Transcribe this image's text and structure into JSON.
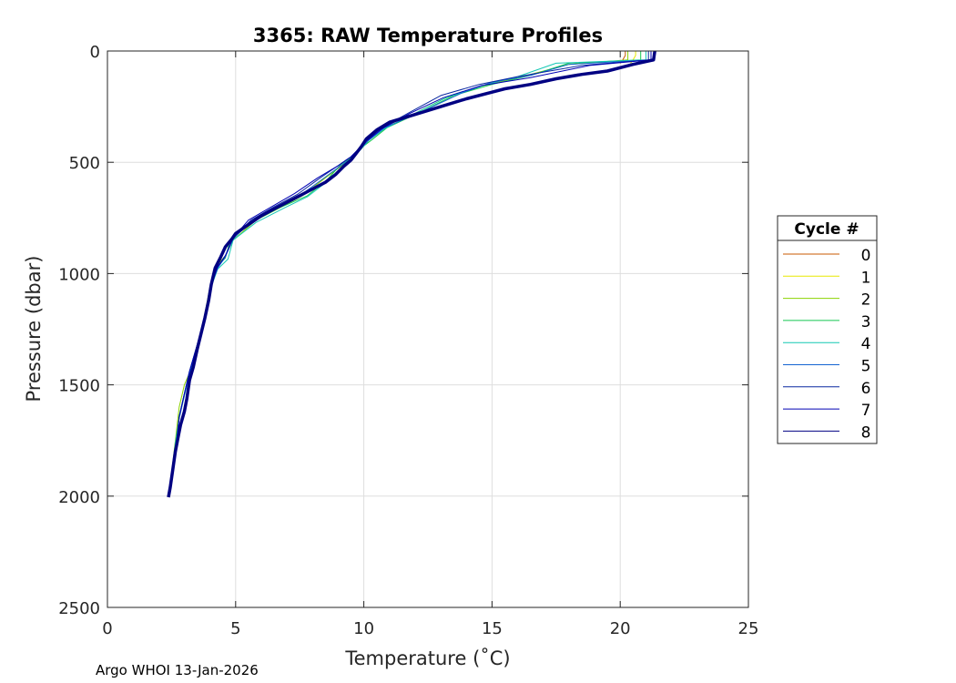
{
  "chart_data": {
    "type": "line",
    "title": "3365: RAW Temperature Profiles",
    "xlabel": "Temperature (˚C)",
    "ylabel": "Pressure (dbar)",
    "xlim": [
      0,
      25
    ],
    "ylim": [
      0,
      2500
    ],
    "y_reversed": true,
    "grid": true,
    "x_ticks": [
      0,
      5,
      10,
      15,
      20,
      25
    ],
    "y_ticks": [
      0,
      500,
      1000,
      1500,
      2000,
      2500
    ],
    "legend": {
      "title": "Cycle #",
      "placement": "outside-right"
    },
    "series": [
      {
        "name": "0",
        "color": "#c85a00",
        "x": [
          20.2,
          20.2,
          20.1,
          20.0
        ],
        "y": [
          0,
          20,
          40,
          55
        ]
      },
      {
        "name": "1",
        "color": "#e8e800",
        "x": [
          20.6,
          20.6,
          20.5,
          20.4
        ],
        "y": [
          0,
          20,
          40,
          55
        ]
      },
      {
        "name": "2",
        "color": "#8cd200",
        "x": [
          20.3,
          20.3,
          18.0,
          16.0,
          14.5,
          13.2,
          12.0,
          10.6,
          10.2,
          9.9,
          9.6,
          9.2,
          8.5,
          7.6,
          6.8,
          5.8,
          4.9,
          4.6,
          4.3,
          4.0,
          3.8,
          3.6,
          3.3,
          3.0,
          2.8,
          2.7,
          2.6,
          2.5
        ],
        "y": [
          0,
          40,
          60,
          120,
          160,
          210,
          280,
          350,
          400,
          440,
          470,
          510,
          570,
          650,
          700,
          760,
          850,
          920,
          960,
          1060,
          1180,
          1300,
          1420,
          1500,
          1600,
          1700,
          1800,
          1900
        ]
      },
      {
        "name": "3",
        "color": "#14c850",
        "x": [
          20.8,
          20.8,
          18.0,
          16.5,
          15.0,
          13.5,
          12.2,
          10.9,
          10.3,
          9.9,
          9.6,
          9.1,
          8.6,
          7.8,
          6.7,
          5.7,
          4.8,
          4.6,
          4.2,
          4.0,
          3.8,
          3.5,
          3.2,
          3.0,
          2.8,
          2.7,
          2.6,
          2.45
        ],
        "y": [
          0,
          40,
          55,
          110,
          150,
          200,
          275,
          345,
          400,
          435,
          470,
          510,
          575,
          650,
          705,
          765,
          845,
          930,
          980,
          1070,
          1200,
          1320,
          1440,
          1540,
          1640,
          1740,
          1860,
          1960
        ]
      },
      {
        "name": "4",
        "color": "#14c8b4",
        "x": [
          21.0,
          21.0,
          17.5,
          16.0,
          14.8,
          13.3,
          12.0,
          10.8,
          10.2,
          9.9,
          9.6,
          9.2,
          8.7,
          7.8,
          6.9,
          5.8,
          4.9,
          4.7,
          4.3,
          4.0,
          3.8,
          3.5,
          3.2,
          3.0,
          2.8,
          2.65,
          2.55,
          2.45
        ],
        "y": [
          0,
          40,
          55,
          115,
          150,
          205,
          280,
          350,
          400,
          440,
          475,
          515,
          575,
          655,
          705,
          770,
          850,
          935,
          980,
          1075,
          1200,
          1330,
          1450,
          1550,
          1650,
          1760,
          1860,
          1970
        ]
      },
      {
        "name": "5",
        "color": "#1464d2",
        "x": [
          21.2,
          21.2,
          18.0,
          16.5,
          15.0,
          13.8,
          12.3,
          10.8,
          10.2,
          9.85,
          9.6,
          9.1,
          8.4,
          7.5,
          6.6,
          5.6,
          4.9,
          4.6,
          4.3,
          4.0,
          3.8,
          3.5,
          3.2,
          3.0,
          2.8,
          2.7,
          2.55,
          2.45
        ],
        "y": [
          0,
          40,
          60,
          110,
          140,
          190,
          270,
          345,
          400,
          440,
          475,
          515,
          575,
          650,
          705,
          765,
          845,
          925,
          975,
          1070,
          1195,
          1325,
          1445,
          1545,
          1650,
          1760,
          1860,
          1970
        ]
      },
      {
        "name": "6",
        "color": "#0a28a0",
        "x": [
          21.1,
          21.1,
          18.5,
          16.0,
          14.5,
          13.0,
          11.8,
          10.7,
          10.1,
          9.8,
          9.5,
          9.0,
          8.3,
          7.4,
          6.5,
          5.6,
          4.9,
          4.6,
          4.3,
          4.0,
          3.8,
          3.5,
          3.2,
          3.0,
          2.8,
          2.7,
          2.55,
          2.45
        ],
        "y": [
          0,
          40,
          65,
          115,
          150,
          200,
          275,
          345,
          400,
          440,
          475,
          515,
          570,
          645,
          700,
          760,
          840,
          920,
          970,
          1065,
          1190,
          1320,
          1440,
          1540,
          1645,
          1755,
          1860,
          1970
        ]
      },
      {
        "name": "7",
        "color": "#0000b4",
        "x": [
          21.2,
          21.2,
          18.8,
          16.5,
          14.6,
          13.1,
          11.8,
          10.7,
          10.1,
          9.8,
          9.5,
          9.0,
          8.2,
          7.3,
          6.4,
          5.5,
          4.9,
          4.6,
          4.3,
          4.0,
          3.8,
          3.5,
          3.2,
          3.0,
          2.8,
          2.7,
          2.55,
          2.45
        ],
        "y": [
          0,
          40,
          65,
          120,
          155,
          210,
          280,
          350,
          405,
          440,
          475,
          515,
          570,
          640,
          700,
          760,
          840,
          920,
          970,
          1065,
          1190,
          1320,
          1440,
          1540,
          1645,
          1755,
          1860,
          1970
        ]
      },
      {
        "name": "8",
        "color": "#000082",
        "x": [
          21.35,
          21.3,
          20.5,
          19.5,
          18.5,
          17.5,
          16.5,
          15.5,
          15.0,
          14.0,
          13.0,
          12.0,
          11.0,
          10.5,
          10.1,
          9.9,
          9.7,
          9.5,
          9.2,
          8.9,
          8.5,
          8.0,
          7.5,
          7.0,
          6.5,
          6.0,
          5.5,
          5.0,
          4.85,
          4.6,
          4.4,
          4.2,
          4.05,
          3.95,
          3.8,
          3.65,
          3.5,
          3.35,
          3.2,
          3.1,
          3.0,
          2.85,
          2.75,
          2.65,
          2.55,
          2.45,
          2.38
        ],
        "y": [
          0,
          40,
          60,
          90,
          105,
          125,
          150,
          170,
          185,
          215,
          250,
          285,
          320,
          355,
          395,
          430,
          460,
          490,
          520,
          555,
          590,
          620,
          650,
          680,
          710,
          740,
          780,
          820,
          845,
          880,
          930,
          975,
          1050,
          1120,
          1200,
          1270,
          1340,
          1420,
          1480,
          1560,
          1620,
          1680,
          1740,
          1800,
          1880,
          1960,
          2005
        ]
      }
    ]
  },
  "footer": "Argo WHOI 13-Jan-2026"
}
